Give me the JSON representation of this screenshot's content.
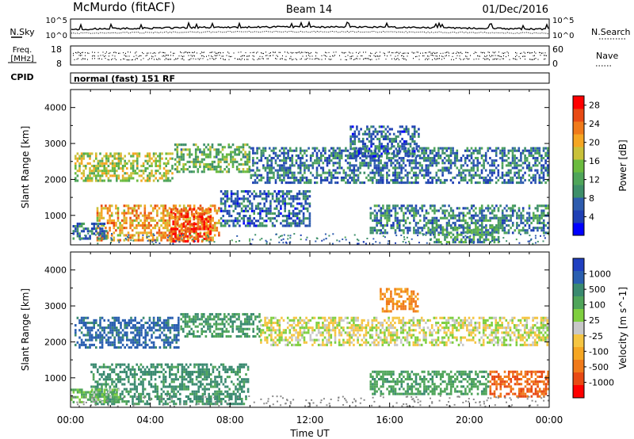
{
  "header": {
    "station": "McMurdo (fitACF)",
    "beam": "Beam 14",
    "date": "01/Dec/2016"
  },
  "noise_panel": {
    "left_label": "N.Sky",
    "right_label": "N.Search",
    "tick_top_left": "10^5",
    "tick_bottom_left": "10^0",
    "tick_top_right": "10^5",
    "tick_bottom_right": "10^0"
  },
  "freq_panel": {
    "left_label_1": "Freq.",
    "left_label_2": "[MHz]",
    "right_label": "Nave",
    "tick_top_left": "18",
    "tick_bottom_left": "8",
    "tick_top_right": "60",
    "tick_bottom_right": "0"
  },
  "cpid": {
    "label": "CPID",
    "text": "normal (fast) 151 RF"
  },
  "chart_data": [
    {
      "type": "heatmap",
      "title": "",
      "xlabel": "Time UT",
      "ylabel": "Slant Range [km]",
      "xlim": [
        0,
        24
      ],
      "ylim": [
        180,
        4500
      ],
      "x_ticks": [
        "00:00",
        "04:00",
        "08:00",
        "12:00",
        "16:00",
        "20:00",
        "00:00"
      ],
      "y_ticks": [
        "1000",
        "2000",
        "3000",
        "4000"
      ],
      "colorbar": {
        "label": "Power [dB]",
        "ticks": [
          "4",
          "8",
          "12",
          "16",
          "20",
          "24",
          "28"
        ],
        "range": [
          0,
          30
        ],
        "colors": [
          "#0000ff",
          "#1f3fb4",
          "#2e5cae",
          "#3e8f6a",
          "#4fa55a",
          "#6bbb3f",
          "#c9c13a",
          "#f5a623",
          "#f07a1a",
          "#e84a14",
          "#ff0000"
        ]
      },
      "regions": [
        {
          "t0": 0.2,
          "t1": 5.2,
          "r0": 1900,
          "r1": 2750,
          "value": 16
        },
        {
          "t0": 5.2,
          "t1": 9.0,
          "r0": 2200,
          "r1": 3000,
          "value": 13
        },
        {
          "t0": 9.0,
          "t1": 24.0,
          "r0": 1900,
          "r1": 2900,
          "value": 8
        },
        {
          "t0": 14.0,
          "t1": 17.5,
          "r0": 2600,
          "r1": 3500,
          "value": 7
        },
        {
          "t0": 1.3,
          "t1": 7.5,
          "r0": 300,
          "r1": 1300,
          "value": 21
        },
        {
          "t0": 5.0,
          "t1": 7.1,
          "r0": 250,
          "r1": 1200,
          "value": 26
        },
        {
          "t0": 7.5,
          "t1": 12.0,
          "r0": 700,
          "r1": 1700,
          "value": 7
        },
        {
          "t0": 15.0,
          "t1": 24.0,
          "r0": 500,
          "r1": 1300,
          "value": 9
        },
        {
          "t0": 0.1,
          "t1": 2.0,
          "r0": 350,
          "r1": 800,
          "value": 8
        },
        {
          "t0": 18.0,
          "t1": 21.5,
          "r0": 250,
          "r1": 700,
          "value": 11
        }
      ]
    },
    {
      "type": "heatmap",
      "title": "",
      "xlabel": "Time UT",
      "ylabel": "Slant Range [km]",
      "xlim": [
        0,
        24
      ],
      "ylim": [
        180,
        4500
      ],
      "x_ticks": [
        "00:00",
        "04:00",
        "08:00",
        "12:00",
        "16:00",
        "20:00",
        "00:00"
      ],
      "y_ticks": [
        "1000",
        "2000",
        "3000",
        "4000"
      ],
      "colorbar": {
        "label": "Velocity [m s^-1]",
        "ticks": [
          "1000",
          "500",
          "100",
          "25",
          "-25",
          "-100",
          "-500",
          "-1000"
        ],
        "colors": [
          "#2040c0",
          "#2a5fb0",
          "#3a8a70",
          "#4fa55a",
          "#7fcf3f",
          "#c8c8c8",
          "#f5c542",
          "#f5a623",
          "#f07a1a",
          "#e84a14",
          "#ff0000"
        ]
      },
      "regions": [
        {
          "t0": 0.2,
          "t1": 5.5,
          "r0": 1800,
          "r1": 2700,
          "value": 400
        },
        {
          "t0": 5.5,
          "t1": 9.5,
          "r0": 2100,
          "r1": 2800,
          "value": 150
        },
        {
          "t0": 9.5,
          "t1": 24.0,
          "r0": 1900,
          "r1": 2700,
          "value": 0
        },
        {
          "t0": 1.0,
          "t1": 9.0,
          "r0": 250,
          "r1": 1400,
          "value": 200
        },
        {
          "t0": 15.0,
          "t1": 21.0,
          "r0": 500,
          "r1": 1200,
          "value": 120
        },
        {
          "t0": 21.0,
          "t1": 24.0,
          "r0": 450,
          "r1": 1200,
          "value": -300
        },
        {
          "t0": 0.0,
          "t1": 2.5,
          "r0": 300,
          "r1": 700,
          "value": 60
        },
        {
          "t0": 15.5,
          "t1": 17.5,
          "r0": 2800,
          "r1": 3500,
          "value": -150
        }
      ]
    }
  ]
}
